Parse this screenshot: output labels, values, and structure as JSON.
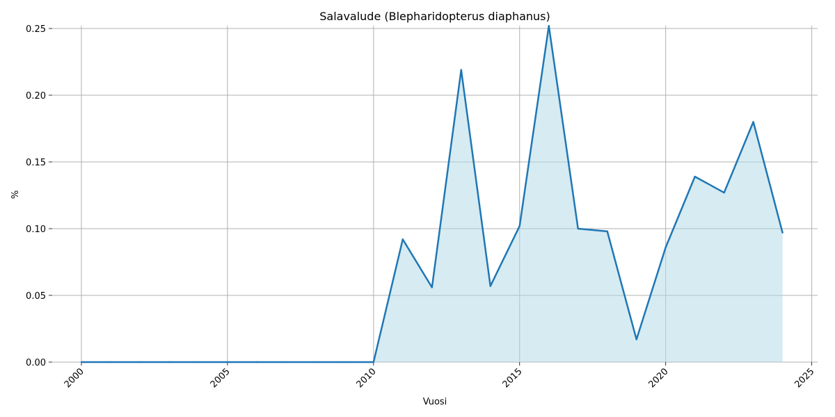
{
  "chart_data": {
    "type": "area",
    "title": "Salavalude (Blepharidopterus diaphanus)",
    "xlabel": "Vuosi",
    "ylabel": "%",
    "xlim": [
      1999,
      2025.2
    ],
    "ylim": [
      0,
      0.25
    ],
    "x_ticks": [
      2000,
      2005,
      2010,
      2015,
      2020,
      2025
    ],
    "x_tick_labels": [
      "2000",
      "2005",
      "2010",
      "2015",
      "2020",
      "2025"
    ],
    "y_ticks": [
      0,
      0.05,
      0.1,
      0.15,
      0.2,
      0.25
    ],
    "y_tick_labels": [
      "0.00",
      "0.05",
      "0.10",
      "0.15",
      "0.20",
      "0.25"
    ],
    "grid": true,
    "series": [
      {
        "x": [
          2000,
          2001,
          2002,
          2003,
          2004,
          2005,
          2006,
          2007,
          2008,
          2009,
          2010,
          2011,
          2012,
          2013,
          2014,
          2015,
          2016,
          2017,
          2018,
          2019,
          2020,
          2021,
          2022,
          2023,
          2024
        ],
        "values": [
          0,
          0,
          0,
          0,
          0,
          0,
          0,
          0,
          0,
          0,
          0,
          0.092,
          0.056,
          0.219,
          0.057,
          0.102,
          0.252,
          0.1,
          0.098,
          0.017,
          0.086,
          0.139,
          0.127,
          0.18,
          0.097
        ],
        "color": "#1f77b4",
        "fill_color": "#add8e6"
      }
    ]
  }
}
